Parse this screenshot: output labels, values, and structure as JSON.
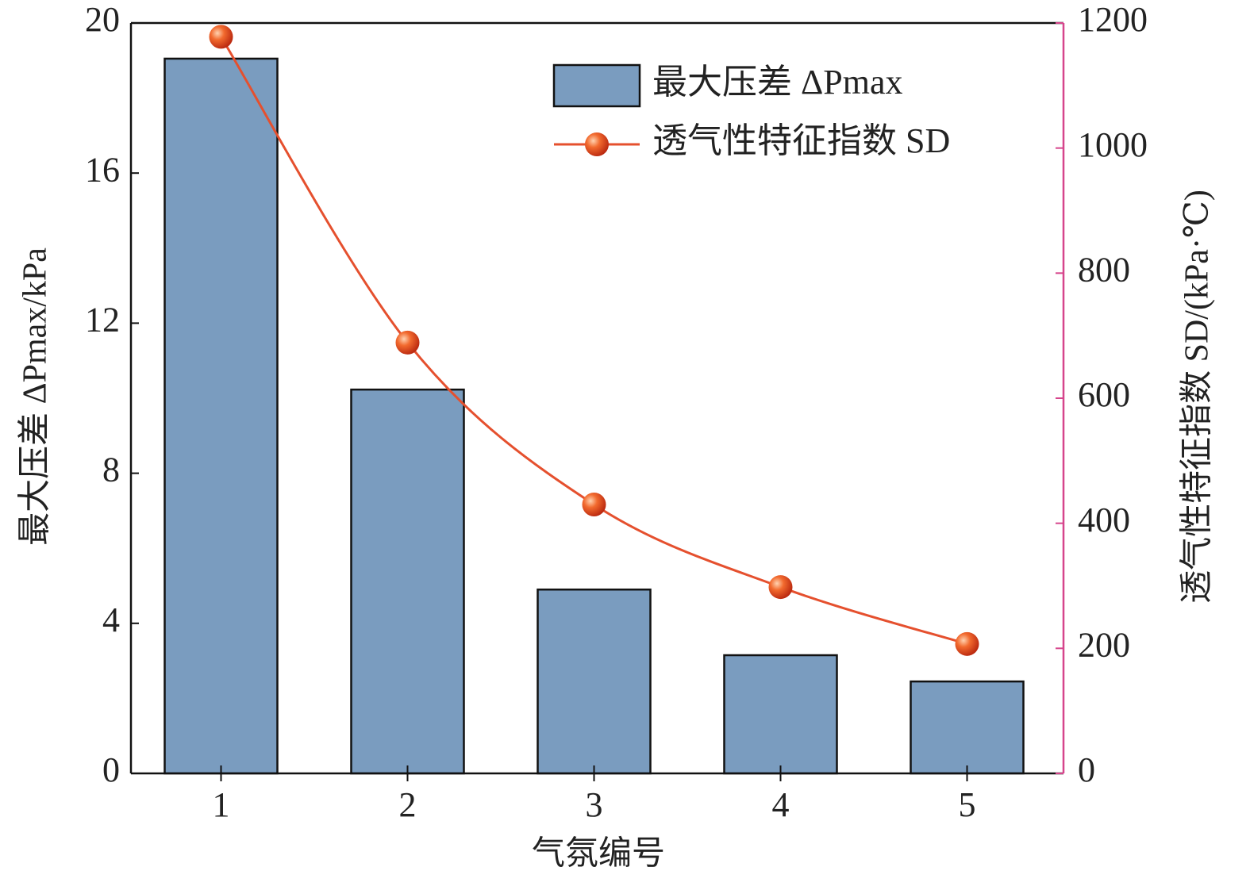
{
  "chart_data": {
    "type": "bar-line",
    "x_label": "气氛编号",
    "y_label": "最大压差 ΔPmax/kPa",
    "y2_label": "透气性特征指数 SD/(kPa·℃)",
    "categories": [
      "1",
      "2",
      "3",
      "4",
      "5"
    ],
    "series": [
      {
        "name": "最大压差 ΔPmax",
        "type": "bar",
        "color": "#7a9cbf",
        "values": [
          19.05,
          10.23,
          4.9,
          3.15,
          2.45
        ]
      },
      {
        "name": "透气性特征指数 SD",
        "type": "line",
        "axis": "y2",
        "color": "#e5502e",
        "values": [
          1178,
          689,
          430,
          298,
          207
        ]
      }
    ],
    "ylim": [
      0,
      20
    ],
    "yticks": [
      0,
      4,
      8,
      12,
      16,
      20
    ],
    "y2lim": [
      0,
      1200
    ],
    "y2ticks": [
      0,
      200,
      400,
      600,
      800,
      1000,
      1200
    ],
    "y2_color": "#d6458c",
    "legend": "upper right"
  }
}
